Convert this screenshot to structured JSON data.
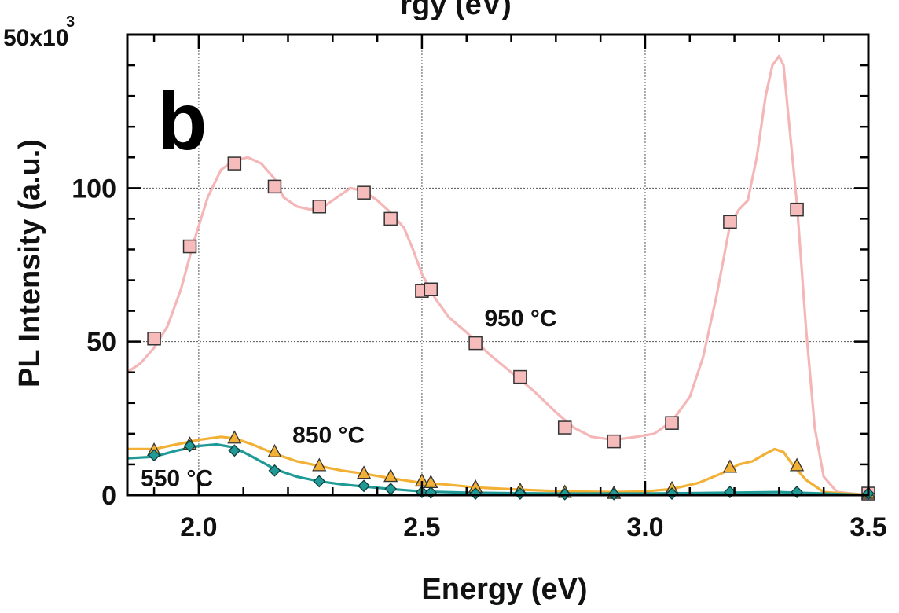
{
  "chart_data": {
    "type": "line",
    "panel_label": "b",
    "top_title_partial": "rgy (eV)",
    "xlabel": "Energy (eV)",
    "ylabel": "PL Intensity (a.u.)",
    "y_multiplier_label": "50x10",
    "y_multiplier_exp": "3",
    "xlim": [
      1.84,
      3.5
    ],
    "ylim": [
      0,
      150
    ],
    "x_ticks": [
      2.0,
      2.5,
      3.0,
      3.5
    ],
    "x_tick_labels": [
      "2.0",
      "2.5",
      "3.0",
      "3.5"
    ],
    "y_ticks": [
      0,
      50,
      100
    ],
    "y_tick_labels": [
      "0",
      "50",
      "100"
    ],
    "grid": true,
    "series": [
      {
        "name": "950 °C",
        "color": "#f4b6b6",
        "marker": "square",
        "marker_fill": "#f6bcbc",
        "curve": [
          [
            1.84,
            40
          ],
          [
            1.87,
            43
          ],
          [
            1.9,
            48
          ],
          [
            1.93,
            55
          ],
          [
            1.96,
            67
          ],
          [
            1.99,
            83
          ],
          [
            2.02,
            97
          ],
          [
            2.05,
            106
          ],
          [
            2.08,
            109
          ],
          [
            2.11,
            110
          ],
          [
            2.14,
            108
          ],
          [
            2.17,
            103
          ],
          [
            2.19,
            97
          ],
          [
            2.22,
            94
          ],
          [
            2.25,
            93
          ],
          [
            2.28,
            94
          ],
          [
            2.31,
            97
          ],
          [
            2.34,
            100
          ],
          [
            2.37,
            99
          ],
          [
            2.4,
            96
          ],
          [
            2.43,
            92
          ],
          [
            2.46,
            87
          ],
          [
            2.48,
            80
          ],
          [
            2.5,
            72
          ],
          [
            2.53,
            64
          ],
          [
            2.56,
            58
          ],
          [
            2.6,
            53
          ],
          [
            2.65,
            46
          ],
          [
            2.7,
            40
          ],
          [
            2.75,
            34
          ],
          [
            2.8,
            27
          ],
          [
            2.84,
            22
          ],
          [
            2.88,
            19
          ],
          [
            2.93,
            18
          ],
          [
            2.98,
            19
          ],
          [
            3.02,
            20
          ],
          [
            3.06,
            24
          ],
          [
            3.1,
            32
          ],
          [
            3.13,
            45
          ],
          [
            3.16,
            65
          ],
          [
            3.19,
            88
          ],
          [
            3.21,
            93
          ],
          [
            3.23,
            96
          ],
          [
            3.25,
            110
          ],
          [
            3.27,
            130
          ],
          [
            3.285,
            140
          ],
          [
            3.3,
            143
          ],
          [
            3.31,
            140
          ],
          [
            3.32,
            125
          ],
          [
            3.34,
            95
          ],
          [
            3.36,
            55
          ],
          [
            3.38,
            22
          ],
          [
            3.4,
            6
          ],
          [
            3.43,
            1
          ],
          [
            3.5,
            0
          ]
        ],
        "markers": [
          [
            1.9,
            51
          ],
          [
            1.98,
            81
          ],
          [
            2.08,
            108
          ],
          [
            2.17,
            100.5
          ],
          [
            2.27,
            94
          ],
          [
            2.37,
            98.5
          ],
          [
            2.43,
            90
          ],
          [
            2.5,
            66.5
          ],
          [
            2.52,
            67
          ],
          [
            2.62,
            49.5
          ],
          [
            2.72,
            38.5
          ],
          [
            2.82,
            22
          ],
          [
            2.93,
            17.5
          ],
          [
            3.06,
            23.5
          ],
          [
            3.19,
            89
          ],
          [
            3.34,
            93
          ],
          [
            3.5,
            0.5
          ]
        ]
      },
      {
        "name": "850 °C",
        "color": "#f2b035",
        "marker": "triangle",
        "marker_fill": "#f2b035",
        "curve": [
          [
            1.84,
            15
          ],
          [
            1.9,
            15
          ],
          [
            1.95,
            16.5
          ],
          [
            2.0,
            18
          ],
          [
            2.05,
            19
          ],
          [
            2.08,
            18.5
          ],
          [
            2.12,
            16.5
          ],
          [
            2.17,
            13.5
          ],
          [
            2.22,
            11
          ],
          [
            2.27,
            9.5
          ],
          [
            2.32,
            8
          ],
          [
            2.37,
            7
          ],
          [
            2.43,
            5.5
          ],
          [
            2.5,
            4
          ],
          [
            2.55,
            3.5
          ],
          [
            2.62,
            2.5
          ],
          [
            2.72,
            1.8
          ],
          [
            2.82,
            1.2
          ],
          [
            2.93,
            1
          ],
          [
            3.0,
            1.2
          ],
          [
            3.06,
            2
          ],
          [
            3.12,
            4
          ],
          [
            3.17,
            7
          ],
          [
            3.21,
            10
          ],
          [
            3.24,
            11
          ],
          [
            3.27,
            13.5
          ],
          [
            3.29,
            15
          ],
          [
            3.31,
            14
          ],
          [
            3.33,
            10
          ],
          [
            3.36,
            5
          ],
          [
            3.4,
            1
          ],
          [
            3.5,
            0
          ]
        ],
        "markers": [
          [
            1.9,
            14.5
          ],
          [
            1.98,
            16.5
          ],
          [
            2.08,
            18.5
          ],
          [
            2.17,
            14
          ],
          [
            2.27,
            9.5
          ],
          [
            2.37,
            7
          ],
          [
            2.43,
            6
          ],
          [
            2.5,
            4.5
          ],
          [
            2.52,
            4
          ],
          [
            2.62,
            2.5
          ],
          [
            2.72,
            1.5
          ],
          [
            2.82,
            0.8
          ],
          [
            2.93,
            0.5
          ],
          [
            3.06,
            2
          ],
          [
            3.19,
            9
          ],
          [
            3.34,
            9.5
          ],
          [
            3.5,
            0.5
          ]
        ]
      },
      {
        "name": "550 °C",
        "color": "#1f9a96",
        "marker": "diamond",
        "marker_fill": "#1f9a96",
        "curve": [
          [
            1.84,
            12
          ],
          [
            1.9,
            12.5
          ],
          [
            1.95,
            14.5
          ],
          [
            2.0,
            16
          ],
          [
            2.04,
            16.5
          ],
          [
            2.08,
            15.5
          ],
          [
            2.12,
            12.5
          ],
          [
            2.17,
            8.5
          ],
          [
            2.22,
            6
          ],
          [
            2.27,
            4.5
          ],
          [
            2.32,
            3.5
          ],
          [
            2.37,
            2.8
          ],
          [
            2.43,
            2
          ],
          [
            2.5,
            1.2
          ],
          [
            2.6,
            0.8
          ],
          [
            2.8,
            0.5
          ],
          [
            3.0,
            0.5
          ],
          [
            3.2,
            0.8
          ],
          [
            3.3,
            1
          ],
          [
            3.4,
            0.5
          ],
          [
            3.5,
            0
          ]
        ],
        "markers": [
          [
            1.9,
            13
          ],
          [
            1.98,
            16
          ],
          [
            2.08,
            14.5
          ],
          [
            2.17,
            8
          ],
          [
            2.27,
            4.5
          ],
          [
            2.37,
            3
          ],
          [
            2.43,
            2
          ],
          [
            2.5,
            1
          ],
          [
            2.52,
            0.8
          ],
          [
            2.62,
            0.5
          ],
          [
            2.72,
            0.5
          ],
          [
            2.82,
            0.3
          ],
          [
            2.93,
            0.3
          ],
          [
            3.06,
            0.5
          ],
          [
            3.19,
            1
          ],
          [
            3.34,
            1
          ],
          [
            3.5,
            0.5
          ]
        ]
      }
    ],
    "series_labels": [
      {
        "text": "950 °C",
        "x": 2.64,
        "y": 55
      },
      {
        "text": "850 °C",
        "x": 2.21,
        "y": 17
      },
      {
        "text": "550 °C",
        "x": 1.87,
        "y": 3
      }
    ]
  }
}
